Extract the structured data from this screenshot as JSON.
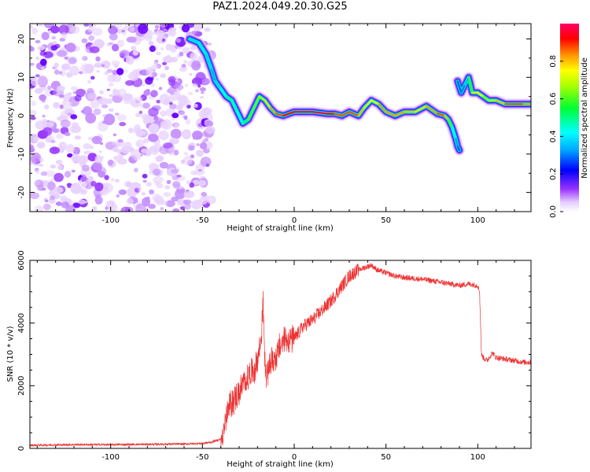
{
  "figure_title": "PAZ1.2024.049.20.30.G25",
  "chart_data": [
    {
      "type": "heatmap",
      "title": "",
      "xlabel": "Height of straight line (km)",
      "ylabel": "Frequency (Hz)",
      "xlim": [
        -144,
        129
      ],
      "ylim": [
        -25,
        24
      ],
      "x_ticks": [
        -100,
        -50,
        0,
        50,
        100
      ],
      "y_ticks": [
        -20,
        -10,
        0,
        10,
        20
      ],
      "colorbar": {
        "label": "Normalized spectral amplitude",
        "range": [
          0,
          1
        ],
        "ticks": [
          0.0,
          0.2,
          0.4,
          0.6,
          0.8
        ],
        "colormap": "hsv-rainbow"
      },
      "noise_region_x": [
        -144,
        -45
      ],
      "ridge": {
        "x": [
          -57,
          -52,
          -48,
          -45,
          -43,
          -40,
          -37,
          -34,
          -31,
          -28,
          -25,
          -22,
          -19,
          -16,
          -13,
          -10,
          -6,
          0,
          10,
          18,
          22,
          26,
          30,
          35,
          38,
          42,
          46,
          50,
          55,
          60,
          66,
          72,
          78,
          82,
          84,
          86,
          88,
          89,
          90
        ],
        "y": [
          20,
          19,
          16,
          12,
          9,
          7,
          5,
          4,
          1,
          -2,
          -1,
          2,
          5,
          4,
          2,
          0.5,
          0,
          1,
          1,
          0.5,
          0.5,
          0,
          1,
          0,
          2,
          4,
          3,
          1,
          0,
          1,
          1,
          2.5,
          0.5,
          0,
          -1,
          -3,
          -6,
          -8,
          -9
        ],
        "amplitude": [
          0.4,
          0.35,
          0.45,
          0.3,
          0.35,
          0.4,
          0.45,
          0.5,
          0.4,
          0.45,
          0.55,
          0.65,
          0.6,
          0.75,
          0.8,
          0.85,
          0.9,
          0.95,
          1.0,
          0.95,
          0.9,
          0.85,
          0.9,
          0.85,
          0.75,
          0.7,
          0.8,
          0.85,
          0.8,
          0.85,
          0.75,
          0.8,
          0.85,
          0.9,
          0.7,
          0.5,
          0.35,
          0.3,
          0.25
        ]
      },
      "ridge2": {
        "x": [
          89,
          91,
          93,
          95,
          97,
          100,
          103,
          106,
          110,
          115,
          120,
          125,
          129
        ],
        "y": [
          9,
          6,
          8,
          10,
          6,
          6,
          5,
          4,
          4,
          3,
          3,
          3,
          3
        ],
        "amplitude": [
          0.25,
          0.3,
          0.3,
          0.4,
          0.75,
          0.8,
          0.7,
          0.6,
          0.75,
          0.85,
          0.9,
          0.85,
          0.8
        ]
      }
    },
    {
      "type": "line",
      "title": "",
      "xlabel": "Height of straight line (km)",
      "ylabel": "SNR (10 * v/v)",
      "xlim": [
        -144,
        129
      ],
      "ylim": [
        0,
        6000
      ],
      "x_ticks": [
        -100,
        -50,
        0,
        50,
        100
      ],
      "y_ticks": [
        0,
        2000,
        4000,
        6000
      ],
      "color": "#ee3333",
      "series": [
        {
          "x": [
            -144,
            -120,
            -100,
            -80,
            -60,
            -50,
            -45,
            -40,
            -38,
            -36,
            -34,
            -32,
            -30,
            -28,
            -26,
            -24,
            -22,
            -20,
            -18,
            -17,
            -16,
            -15,
            -14,
            -12,
            -10,
            -8,
            -5,
            0,
            5,
            10,
            15,
            20,
            25,
            30,
            35,
            40,
            42,
            45,
            50,
            55,
            60,
            70,
            80,
            90,
            95,
            100,
            101,
            102,
            103,
            105,
            108,
            110,
            115,
            120,
            125,
            129
          ],
          "y": [
            100,
            120,
            120,
            130,
            140,
            160,
            200,
            300,
            700,
            1200,
            1500,
            1600,
            1800,
            2000,
            2200,
            2400,
            2500,
            2800,
            3500,
            4700,
            2800,
            2200,
            2600,
            2800,
            2900,
            3200,
            3500,
            3500,
            3900,
            4100,
            4400,
            4700,
            5100,
            5500,
            5700,
            5800,
            5850,
            5700,
            5600,
            5500,
            5450,
            5400,
            5300,
            5200,
            5250,
            5200,
            5000,
            3000,
            2900,
            2800,
            3050,
            2900,
            2850,
            2800,
            2750,
            2750
          ]
        }
      ]
    }
  ]
}
